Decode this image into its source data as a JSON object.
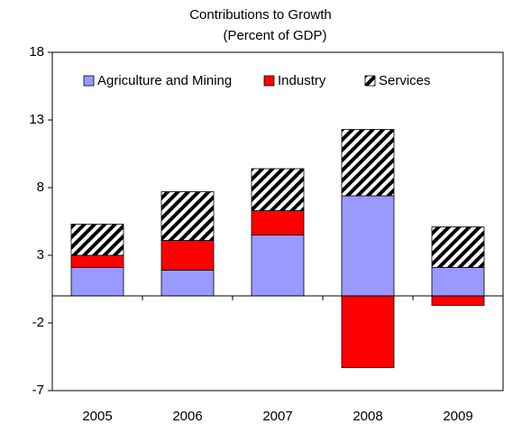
{
  "chart_data": {
    "type": "stacked_bar",
    "title": "Contributions to Growth",
    "subtitle": "(Percent of GDP)",
    "categories": [
      "2005",
      "2006",
      "2007",
      "2008",
      "2009"
    ],
    "series": [
      {
        "name": "Agriculture and Mining",
        "color": "#9999ff",
        "values": [
          2.1,
          1.9,
          4.5,
          7.4,
          2.1
        ]
      },
      {
        "name": "Industry",
        "color": "#ff0000",
        "values": [
          0.9,
          2.2,
          1.8,
          -5.3,
          -0.7
        ]
      },
      {
        "name": "Services",
        "color": "#000000",
        "hatch": true,
        "values": [
          2.3,
          3.6,
          3.1,
          4.9,
          3.0
        ]
      }
    ],
    "ylim": [
      -7,
      18
    ],
    "yticks": [
      -7,
      -2,
      3,
      8,
      13,
      18
    ]
  }
}
